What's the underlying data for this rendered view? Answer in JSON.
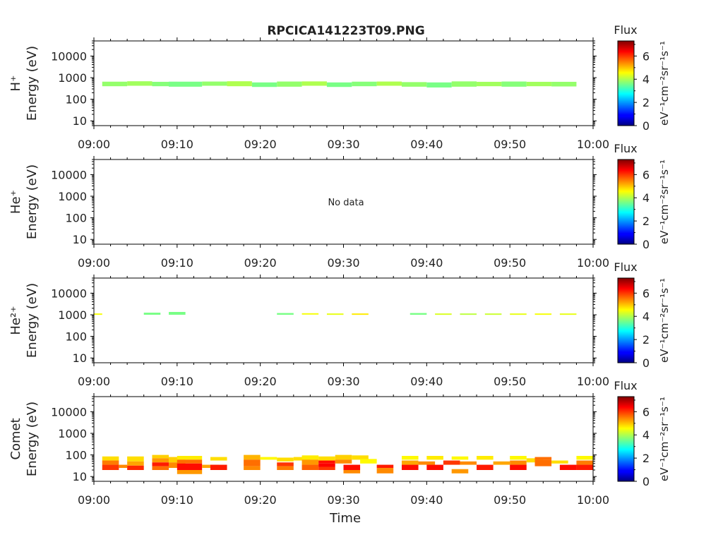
{
  "figure_title": "RPCICA141223T09.PNG",
  "xlabel": "Time",
  "colorbar": {
    "title": "Flux",
    "unit_label": "eV⁻¹cm⁻²sr⁻¹s⁻¹",
    "ticks": [
      "0",
      "2",
      "4",
      "6"
    ],
    "range": [
      0,
      7.3
    ],
    "colormap": "jet"
  },
  "panels": [
    {
      "species": "H⁺",
      "ylabel": "Energy (eV)",
      "note": ""
    },
    {
      "species": "He⁺",
      "ylabel": "Energy (eV)",
      "note": "No data"
    },
    {
      "species": "He²⁺",
      "ylabel": "Energy (eV)",
      "note": ""
    },
    {
      "species": "Comet",
      "ylabel": "Energy (eV)",
      "note": ""
    }
  ],
  "chart_data": [
    {
      "type": "heatmap",
      "title": "RPCICA141223T09.PNG",
      "ylabel": "Energy (eV)",
      "xlabel": "",
      "y_scale": "log",
      "ylim": [
        6,
        50000
      ],
      "xlim": [
        "09:00",
        "10:00"
      ],
      "x_ticks": [
        "09:00",
        "09:10",
        "09:20",
        "09:30",
        "09:40",
        "09:50",
        "10:00"
      ],
      "y_ticks": [
        "10",
        "100",
        "1000",
        "10000"
      ],
      "cells": [
        {
          "t0": "09:01",
          "t1": "09:04",
          "e0": 400,
          "e1": 650,
          "v": 3.8
        },
        {
          "t0": "09:04",
          "t1": "09:07",
          "e0": 420,
          "e1": 680,
          "v": 3.9
        },
        {
          "t0": "09:07",
          "t1": "09:10",
          "e0": 400,
          "e1": 640,
          "v": 3.7
        },
        {
          "t0": "09:09",
          "t1": "09:13",
          "e0": 380,
          "e1": 650,
          "v": 3.6
        },
        {
          "t0": "09:13",
          "t1": "09:16",
          "e0": 420,
          "e1": 660,
          "v": 3.8
        },
        {
          "t0": "09:16",
          "t1": "09:19",
          "e0": 400,
          "e1": 680,
          "v": 4.0
        },
        {
          "t0": "09:19",
          "t1": "09:22",
          "e0": 370,
          "e1": 600,
          "v": 3.6
        },
        {
          "t0": "09:22",
          "t1": "09:25",
          "e0": 380,
          "e1": 660,
          "v": 3.8
        },
        {
          "t0": "09:25",
          "t1": "09:28",
          "e0": 420,
          "e1": 670,
          "v": 4.0
        },
        {
          "t0": "09:28",
          "t1": "09:31",
          "e0": 370,
          "e1": 600,
          "v": 3.6
        },
        {
          "t0": "09:31",
          "t1": "09:34",
          "e0": 400,
          "e1": 650,
          "v": 3.7
        },
        {
          "t0": "09:34",
          "t1": "09:37",
          "e0": 420,
          "e1": 660,
          "v": 4.0
        },
        {
          "t0": "09:37",
          "t1": "09:40",
          "e0": 380,
          "e1": 620,
          "v": 3.8
        },
        {
          "t0": "09:40",
          "t1": "09:43",
          "e0": 350,
          "e1": 600,
          "v": 3.6
        },
        {
          "t0": "09:43",
          "t1": "09:46",
          "e0": 380,
          "e1": 670,
          "v": 3.8
        },
        {
          "t0": "09:46",
          "t1": "09:49",
          "e0": 400,
          "e1": 640,
          "v": 3.9
        },
        {
          "t0": "09:49",
          "t1": "09:52",
          "e0": 380,
          "e1": 660,
          "v": 3.7
        },
        {
          "t0": "09:52",
          "t1": "09:55",
          "e0": 400,
          "e1": 640,
          "v": 3.9
        },
        {
          "t0": "09:55",
          "t1": "09:58",
          "e0": 390,
          "e1": 640,
          "v": 3.8
        }
      ]
    },
    {
      "type": "heatmap",
      "ylabel": "Energy (eV)",
      "xlabel": "",
      "y_scale": "log",
      "ylim": [
        6,
        50000
      ],
      "xlim": [
        "09:00",
        "10:00"
      ],
      "x_ticks": [
        "09:00",
        "09:10",
        "09:20",
        "09:30",
        "09:40",
        "09:50",
        "10:00"
      ],
      "y_ticks": [
        "10",
        "100",
        "1000",
        "10000"
      ],
      "cells": []
    },
    {
      "type": "heatmap",
      "ylabel": "Energy (eV)",
      "xlabel": "",
      "y_scale": "log",
      "ylim": [
        6,
        50000
      ],
      "xlim": [
        "09:00",
        "10:00"
      ],
      "x_ticks": [
        "09:00",
        "09:10",
        "09:20",
        "09:30",
        "09:40",
        "09:50",
        "10:00"
      ],
      "y_ticks": [
        "10",
        "100",
        "1000",
        "10000"
      ],
      "cells": [
        {
          "t0": "09:00",
          "t1": "09:01",
          "e0": 1050,
          "e1": 1150,
          "v": 4.5
        },
        {
          "t0": "09:06",
          "t1": "09:08",
          "e0": 1000,
          "e1": 1250,
          "v": 3.6
        },
        {
          "t0": "09:09",
          "t1": "09:11",
          "e0": 1000,
          "e1": 1350,
          "v": 3.6
        },
        {
          "t0": "09:22",
          "t1": "09:24",
          "e0": 1000,
          "e1": 1200,
          "v": 3.6
        },
        {
          "t0": "09:25",
          "t1": "09:27",
          "e0": 1080,
          "e1": 1180,
          "v": 4.5
        },
        {
          "t0": "09:28",
          "t1": "09:30",
          "e0": 1020,
          "e1": 1150,
          "v": 4.4
        },
        {
          "t0": "09:31",
          "t1": "09:33",
          "e0": 1020,
          "e1": 1150,
          "v": 4.7
        },
        {
          "t0": "09:38",
          "t1": "09:40",
          "e0": 1000,
          "e1": 1200,
          "v": 3.6
        },
        {
          "t0": "09:41",
          "t1": "09:43",
          "e0": 1020,
          "e1": 1150,
          "v": 4.3
        },
        {
          "t0": "09:44",
          "t1": "09:46",
          "e0": 1020,
          "e1": 1150,
          "v": 4.1
        },
        {
          "t0": "09:47",
          "t1": "09:49",
          "e0": 1020,
          "e1": 1150,
          "v": 4.2
        },
        {
          "t0": "09:50",
          "t1": "09:52",
          "e0": 1020,
          "e1": 1150,
          "v": 4.4
        },
        {
          "t0": "09:53",
          "t1": "09:55",
          "e0": 1020,
          "e1": 1150,
          "v": 4.5
        },
        {
          "t0": "09:56",
          "t1": "09:58",
          "e0": 1020,
          "e1": 1150,
          "v": 4.4
        }
      ]
    },
    {
      "type": "heatmap",
      "ylabel": "Energy (eV)",
      "xlabel": "Time",
      "y_scale": "log",
      "ylim": [
        6,
        50000
      ],
      "xlim": [
        "09:00",
        "10:00"
      ],
      "x_ticks": [
        "09:00",
        "09:10",
        "09:20",
        "09:30",
        "09:40",
        "09:50",
        "10:00"
      ],
      "y_ticks": [
        "10",
        "100",
        "1000",
        "10000"
      ],
      "cells": [
        {
          "t0": "09:01",
          "t1": "09:03",
          "e0": 55,
          "e1": 85,
          "v": 4.8
        },
        {
          "t0": "09:01",
          "t1": "09:03",
          "e0": 35,
          "e1": 55,
          "v": 5.5
        },
        {
          "t0": "09:01",
          "t1": "09:03",
          "e0": 20,
          "e1": 35,
          "v": 6.0
        },
        {
          "t0": "09:03",
          "t1": "09:04",
          "e0": 25,
          "e1": 35,
          "v": 5.4
        },
        {
          "t0": "09:04",
          "t1": "09:06",
          "e0": 50,
          "e1": 85,
          "v": 4.8
        },
        {
          "t0": "09:04",
          "t1": "09:06",
          "e0": 32,
          "e1": 50,
          "v": 5.2
        },
        {
          "t0": "09:04",
          "t1": "09:06",
          "e0": 20,
          "e1": 32,
          "v": 6.1
        },
        {
          "t0": "09:07",
          "t1": "09:09",
          "e0": 70,
          "e1": 100,
          "v": 4.9
        },
        {
          "t0": "09:07",
          "t1": "09:09",
          "e0": 45,
          "e1": 70,
          "v": 5.3
        },
        {
          "t0": "09:07",
          "t1": "09:09",
          "e0": 30,
          "e1": 45,
          "v": 6.2
        },
        {
          "t0": "09:07",
          "t1": "09:09",
          "e0": 20,
          "e1": 30,
          "v": 5.6
        },
        {
          "t0": "09:09",
          "t1": "09:11",
          "e0": 45,
          "e1": 80,
          "v": 4.9
        },
        {
          "t0": "09:09",
          "t1": "09:11",
          "e0": 25,
          "e1": 45,
          "v": 5.4
        },
        {
          "t0": "09:10",
          "t1": "09:13",
          "e0": 60,
          "e1": 90,
          "v": 4.7
        },
        {
          "t0": "09:10",
          "t1": "09:13",
          "e0": 40,
          "e1": 60,
          "v": 5.6
        },
        {
          "t0": "09:10",
          "t1": "09:13",
          "e0": 20,
          "e1": 40,
          "v": 6.3
        },
        {
          "t0": "09:10",
          "t1": "09:13",
          "e0": 13,
          "e1": 20,
          "v": 5.3
        },
        {
          "t0": "09:13",
          "t1": "09:15",
          "e0": 25,
          "e1": 35,
          "v": 5.2
        },
        {
          "t0": "09:14",
          "t1": "09:16",
          "e0": 55,
          "e1": 80,
          "v": 4.8
        },
        {
          "t0": "09:14",
          "t1": "09:16",
          "e0": 20,
          "e1": 35,
          "v": 6.2
        },
        {
          "t0": "09:18",
          "t1": "09:20",
          "e0": 60,
          "e1": 100,
          "v": 5.1
        },
        {
          "t0": "09:18",
          "t1": "09:20",
          "e0": 30,
          "e1": 60,
          "v": 5.6
        },
        {
          "t0": "09:18",
          "t1": "09:20",
          "e0": 20,
          "e1": 30,
          "v": 5.4
        },
        {
          "t0": "09:20",
          "t1": "09:22",
          "e0": 60,
          "e1": 80,
          "v": 4.6
        },
        {
          "t0": "09:22",
          "t1": "09:24",
          "e0": 50,
          "e1": 75,
          "v": 4.8
        },
        {
          "t0": "09:22",
          "t1": "09:24",
          "e0": 30,
          "e1": 45,
          "v": 6.0
        },
        {
          "t0": "09:22",
          "t1": "09:24",
          "e0": 20,
          "e1": 30,
          "v": 5.5
        },
        {
          "t0": "09:24",
          "t1": "09:26",
          "e0": 55,
          "e1": 80,
          "v": 4.8
        },
        {
          "t0": "09:25",
          "t1": "09:27",
          "e0": 60,
          "e1": 95,
          "v": 4.7
        },
        {
          "t0": "09:25",
          "t1": "09:27",
          "e0": 35,
          "e1": 60,
          "v": 5.3
        },
        {
          "t0": "09:25",
          "t1": "09:27",
          "e0": 20,
          "e1": 35,
          "v": 5.7
        },
        {
          "t0": "09:27",
          "t1": "09:29",
          "e0": 55,
          "e1": 85,
          "v": 4.8
        },
        {
          "t0": "09:27",
          "t1": "09:29",
          "e0": 40,
          "e1": 55,
          "v": 6.3
        },
        {
          "t0": "09:27",
          "t1": "09:29",
          "e0": 28,
          "e1": 40,
          "v": 6.4
        },
        {
          "t0": "09:27",
          "t1": "09:29",
          "e0": 20,
          "e1": 28,
          "v": 6.0
        },
        {
          "t0": "09:29",
          "t1": "09:31",
          "e0": 60,
          "e1": 100,
          "v": 4.9
        },
        {
          "t0": "09:29",
          "t1": "09:31",
          "e0": 40,
          "e1": 60,
          "v": 5.4
        },
        {
          "t0": "09:30",
          "t1": "09:32",
          "e0": 20,
          "e1": 35,
          "v": 6.3
        },
        {
          "t0": "09:30",
          "t1": "09:32",
          "e0": 14,
          "e1": 20,
          "v": 5.4
        },
        {
          "t0": "09:31",
          "t1": "09:33",
          "e0": 60,
          "e1": 95,
          "v": 4.8
        },
        {
          "t0": "09:32",
          "t1": "09:34",
          "e0": 40,
          "e1": 65,
          "v": 4.6
        },
        {
          "t0": "09:34",
          "t1": "09:36",
          "e0": 25,
          "e1": 35,
          "v": 6.2
        },
        {
          "t0": "09:34",
          "t1": "09:36",
          "e0": 14,
          "e1": 25,
          "v": 5.4
        },
        {
          "t0": "09:37",
          "t1": "09:39",
          "e0": 60,
          "e1": 90,
          "v": 4.6
        },
        {
          "t0": "09:37",
          "t1": "09:39",
          "e0": 35,
          "e1": 55,
          "v": 5.2
        },
        {
          "t0": "09:37",
          "t1": "09:39",
          "e0": 20,
          "e1": 35,
          "v": 6.3
        },
        {
          "t0": "09:39",
          "t1": "09:41",
          "e0": 35,
          "e1": 50,
          "v": 5.4
        },
        {
          "t0": "09:40",
          "t1": "09:42",
          "e0": 60,
          "e1": 90,
          "v": 4.7
        },
        {
          "t0": "09:40",
          "t1": "09:42",
          "e0": 20,
          "e1": 35,
          "v": 6.3
        },
        {
          "t0": "09:42",
          "t1": "09:44",
          "e0": 35,
          "e1": 55,
          "v": 6.0
        },
        {
          "t0": "09:43",
          "t1": "09:45",
          "e0": 60,
          "e1": 85,
          "v": 4.6
        },
        {
          "t0": "09:43",
          "t1": "09:45",
          "e0": 14,
          "e1": 22,
          "v": 5.3
        },
        {
          "t0": "09:44",
          "t1": "09:46",
          "e0": 35,
          "e1": 50,
          "v": 5.4
        },
        {
          "t0": "09:46",
          "t1": "09:48",
          "e0": 60,
          "e1": 90,
          "v": 4.7
        },
        {
          "t0": "09:46",
          "t1": "09:48",
          "e0": 20,
          "e1": 35,
          "v": 6.2
        },
        {
          "t0": "09:48",
          "t1": "09:50",
          "e0": 35,
          "e1": 50,
          "v": 5.2
        },
        {
          "t0": "09:50",
          "t1": "09:52",
          "e0": 60,
          "e1": 90,
          "v": 4.6
        },
        {
          "t0": "09:50",
          "t1": "09:52",
          "e0": 35,
          "e1": 55,
          "v": 5.4
        },
        {
          "t0": "09:50",
          "t1": "09:52",
          "e0": 20,
          "e1": 35,
          "v": 6.3
        },
        {
          "t0": "09:52",
          "t1": "09:54",
          "e0": 45,
          "e1": 70,
          "v": 4.8
        },
        {
          "t0": "09:53",
          "t1": "09:55",
          "e0": 60,
          "e1": 80,
          "v": 5.6
        },
        {
          "t0": "09:53",
          "t1": "09:55",
          "e0": 30,
          "e1": 60,
          "v": 5.6
        },
        {
          "t0": "09:55",
          "t1": "09:57",
          "e0": 40,
          "e1": 55,
          "v": 4.8
        },
        {
          "t0": "09:56",
          "t1": "09:58",
          "e0": 20,
          "e1": 35,
          "v": 6.3
        },
        {
          "t0": "09:58",
          "t1": "10:00",
          "e0": 60,
          "e1": 90,
          "v": 4.6
        },
        {
          "t0": "09:58",
          "t1": "10:00",
          "e0": 35,
          "e1": 55,
          "v": 5.5
        },
        {
          "t0": "09:58",
          "t1": "10:00",
          "e0": 20,
          "e1": 35,
          "v": 6.2
        }
      ]
    }
  ]
}
